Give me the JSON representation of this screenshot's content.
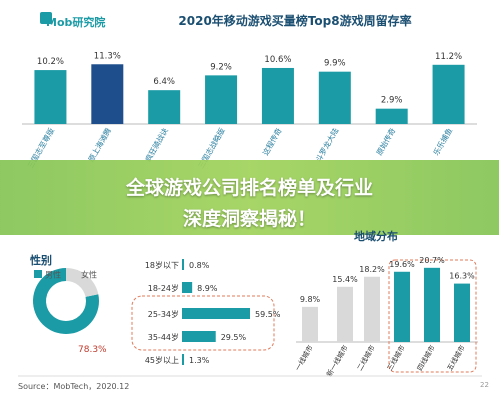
{
  "logo": {
    "text": "Mob研究院"
  },
  "banner": {
    "line1": "全球游戏公司排名榜单及行业",
    "line2": "深度洞察揭秘！"
  },
  "chart_data": [
    {
      "type": "bar",
      "title": "2020年移动游戏买量榜Top8游戏周留存率",
      "categories": [
        "三国志至尊版",
        "原上海滩腾",
        "疯狂骑战诀",
        "三国志战略版",
        "这程传奇",
        "斗罗龙大陆",
        "原始传奇",
        "乐乐捕鱼"
      ],
      "values": [
        10.2,
        11.3,
        6.4,
        9.2,
        10.6,
        9.9,
        2.9,
        11.2
      ],
      "value_labels": [
        "10.2%",
        "11.3%",
        "6.4%",
        "9.2%",
        "10.6%",
        "9.9%",
        "2.9%",
        "11.2%"
      ],
      "ylim": [
        0,
        14
      ],
      "color": "#1a9ba6",
      "highlight_color": "#1e4f8c"
    },
    {
      "type": "pie",
      "title": "性别",
      "legend": [
        "男性",
        "女性"
      ],
      "values": [
        78.3,
        21.7
      ],
      "value_labels": [
        "78.3%"
      ],
      "colors": [
        "#1a9ba6",
        "#d9d9d9"
      ]
    },
    {
      "type": "bar",
      "orientation": "horizontal",
      "categories": [
        "18岁以下",
        "18-24岁",
        "25-34岁",
        "35-44岁",
        "45岁以上"
      ],
      "values": [
        0.8,
        8.9,
        59.5,
        29.5,
        1.3
      ],
      "value_labels": [
        "0.8%",
        "8.9%",
        "59.5%",
        "29.5%",
        "1.3%"
      ],
      "xlim": [
        0,
        70
      ],
      "color": "#1a9ba6"
    },
    {
      "type": "bar",
      "title": "地域分布",
      "categories": [
        "一线城市",
        "新一线城市",
        "二线城市",
        "三线城市",
        "四线城市",
        "五线城市"
      ],
      "values": [
        9.8,
        15.4,
        18.2,
        19.6,
        20.7,
        16.3
      ],
      "value_labels": [
        "9.8%",
        "15.4%",
        "18.2%",
        "19.6%",
        "20.7%",
        "16.3%"
      ],
      "ylim": [
        0,
        24
      ],
      "colors": [
        "#d9d9d9",
        "#d9d9d9",
        "#d9d9d9",
        "#1a9ba6",
        "#1a9ba6",
        "#1a9ba6"
      ]
    }
  ],
  "footer": {
    "source": "Source：MobTech，2020.12",
    "page": "22"
  }
}
